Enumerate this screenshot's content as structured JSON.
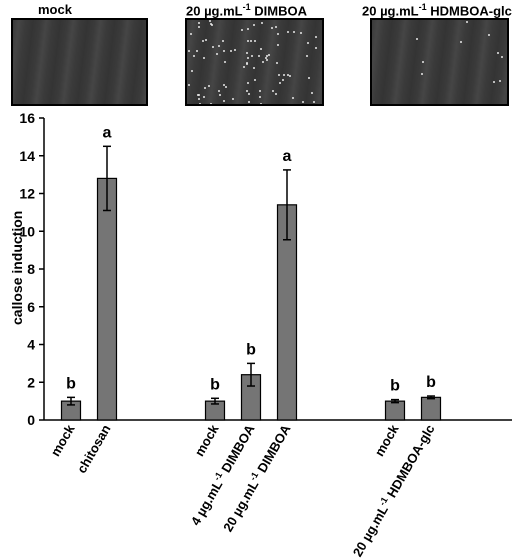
{
  "panels": [
    {
      "title": "mock",
      "speckles": "none"
    },
    {
      "title_pre": "20 µg.mL",
      "title_sup": "-1",
      "title_post": " DIMBOA",
      "speckles": "dense"
    },
    {
      "title_pre": "20 µg.mL",
      "title_sup": "-1",
      "title_post": " HDMBOA-glc",
      "speckles": "sparse"
    }
  ],
  "colors": {
    "bar": "#757575",
    "micro_bg": "#3a3a3a"
  },
  "chart_data": {
    "type": "bar",
    "ylabel": "callose induction",
    "ylim": [
      0,
      16
    ],
    "yticks": [
      0,
      2,
      4,
      6,
      8,
      10,
      12,
      14,
      16
    ],
    "groups": [
      {
        "bars": [
          {
            "label": "mock",
            "value": 1.0,
            "error": 0.2,
            "letter": "b"
          },
          {
            "label": "chitosan",
            "value": 12.8,
            "error": 1.7,
            "letter": "a"
          }
        ]
      },
      {
        "bars": [
          {
            "label": "mock",
            "value": 1.0,
            "error": 0.15,
            "letter": "b"
          },
          {
            "label_pre": "4 µg.mL",
            "label_sup": "-1",
            "label_post": " DIMBOA",
            "value": 2.4,
            "error": 0.6,
            "letter": "b"
          },
          {
            "label_pre": "20 µg.mL",
            "label_sup": "-1",
            "label_post": " DIMBOA",
            "value": 11.4,
            "error": 1.85,
            "letter": "a"
          }
        ]
      },
      {
        "bars": [
          {
            "label": "mock",
            "value": 1.0,
            "error": 0.08,
            "letter": "b"
          },
          {
            "label_pre": "20 µg.mL",
            "label_sup": "-1",
            "label_post": " HDMBOA-glc",
            "value": 1.2,
            "error": 0.07,
            "letter": "b"
          }
        ]
      }
    ]
  }
}
